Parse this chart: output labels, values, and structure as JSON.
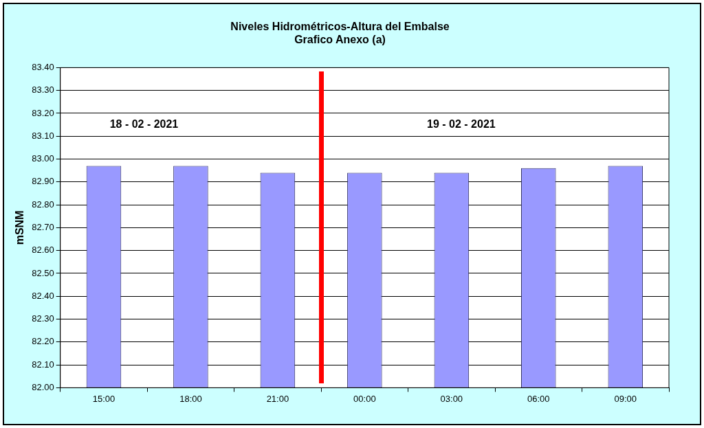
{
  "chart_data": {
    "type": "bar",
    "title": "Niveles Hidrométricos-Altura del Embalse",
    "subtitle": "Grafico Anexo (a)",
    "ylabel": "mSNM",
    "categories": [
      "15:00",
      "18:00",
      "21:00",
      "00:00",
      "03:00",
      "06:00",
      "09:00"
    ],
    "values": [
      82.97,
      82.97,
      82.94,
      82.94,
      82.94,
      82.96,
      82.97
    ],
    "color": "#9999ff",
    "ylim": [
      82.0,
      83.4
    ],
    "yticks": [
      {
        "value": 82.0,
        "label": "82.00"
      },
      {
        "value": 82.1,
        "label": "82.10"
      },
      {
        "value": 82.2,
        "label": "82.20"
      },
      {
        "value": 82.3,
        "label": "82.30"
      },
      {
        "value": 82.4,
        "label": "82.40"
      },
      {
        "value": 82.5,
        "label": "82.50"
      },
      {
        "value": 82.6,
        "label": "82.60"
      },
      {
        "value": 82.7,
        "label": "82.70"
      },
      {
        "value": 82.8,
        "label": "82.80"
      },
      {
        "value": 82.9,
        "label": "82.90"
      },
      {
        "value": 83.0,
        "label": "83.00"
      },
      {
        "value": 83.1,
        "label": "83.10"
      },
      {
        "value": 83.2,
        "label": "83.20"
      },
      {
        "value": 83.3,
        "label": "83.30"
      },
      {
        "value": 83.4,
        "label": "83.40"
      }
    ],
    "grid": "y",
    "annotations": [
      "18 - 02 - 2021",
      "19 - 02 - 2021"
    ]
  }
}
